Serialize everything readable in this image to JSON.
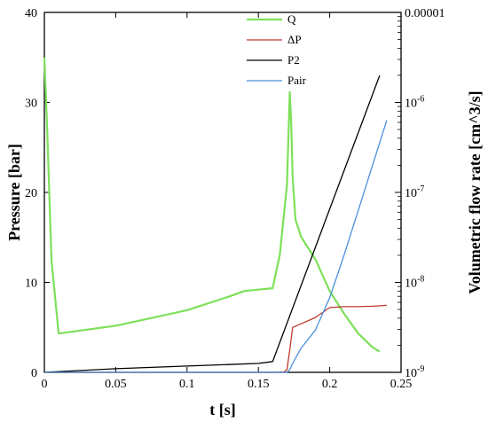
{
  "chart_data": {
    "type": "line",
    "title": "",
    "xlabel": "t [s]",
    "ylabel_left": "Pressure [bar]",
    "ylabel_right": "Volumetric flow rate [cm^3/s]",
    "xlim": [
      0,
      0.25
    ],
    "ylim_left": [
      0,
      40
    ],
    "ylim_right": [
      1e-09,
      1e-05
    ],
    "right_axis_scale": "log",
    "grid": false,
    "legend_position": "top-center",
    "x_ticks": [
      "0",
      "0.05",
      "0.1",
      "0.15",
      "0.2",
      "0.25"
    ],
    "y_left_ticks": [
      "0",
      "10",
      "20",
      "30",
      "40"
    ],
    "y_right_ticks": [
      "10^-9",
      "10^-8",
      "10^-7",
      "10^-6",
      "0.00001"
    ],
    "series": [
      {
        "name": "Q",
        "axis": "right",
        "color": "#7ee05a",
        "x": [
          0,
          0.002,
          0.005,
          0.01,
          0.05,
          0.1,
          0.13,
          0.14,
          0.15,
          0.16,
          0.165,
          0.17,
          0.172,
          0.173,
          0.174,
          0.176,
          0.18,
          0.19,
          0.2,
          0.21,
          0.22,
          0.23,
          0.235
        ],
        "y": [
          3.16e-06,
          5e-07,
          1.78e-08,
          2.7e-09,
          3.3e-09,
          4.9e-09,
          7e-09,
          8e-09,
          8.3e-09,
          8.6e-09,
          2e-08,
          1.2e-07,
          1.3e-06,
          6e-07,
          1.5e-07,
          5e-08,
          3.2e-08,
          1.8e-08,
          8e-09,
          4.5e-09,
          2.7e-09,
          1.9e-09,
          1.7e-09
        ]
      },
      {
        "name": "ΔP",
        "axis": "left",
        "color": "#c0392b",
        "x": [
          0,
          0.16,
          0.168,
          0.17,
          0.172,
          0.174,
          0.18,
          0.19,
          0.2,
          0.21,
          0.22,
          0.23,
          0.24
        ],
        "y": [
          0,
          0,
          0.05,
          0.3,
          2.5,
          5.0,
          5.4,
          6.1,
          7.2,
          7.3,
          7.3,
          7.35,
          7.45
        ]
      },
      {
        "name": "P2",
        "axis": "left",
        "color": "#000000",
        "x": [
          0,
          0.05,
          0.1,
          0.15,
          0.16,
          0.235
        ],
        "y": [
          0,
          0.4,
          0.7,
          1.0,
          1.2,
          33.0
        ]
      },
      {
        "name": "Pair",
        "axis": "left",
        "color": "#4a90d9",
        "x": [
          0,
          0.17,
          0.172,
          0.174,
          0.18,
          0.19,
          0.2,
          0.21,
          0.22,
          0.23,
          0.24
        ],
        "y": [
          0,
          0,
          0.3,
          1.0,
          2.7,
          4.7,
          8.3,
          13.0,
          18.0,
          23.0,
          28.0
        ]
      }
    ]
  }
}
